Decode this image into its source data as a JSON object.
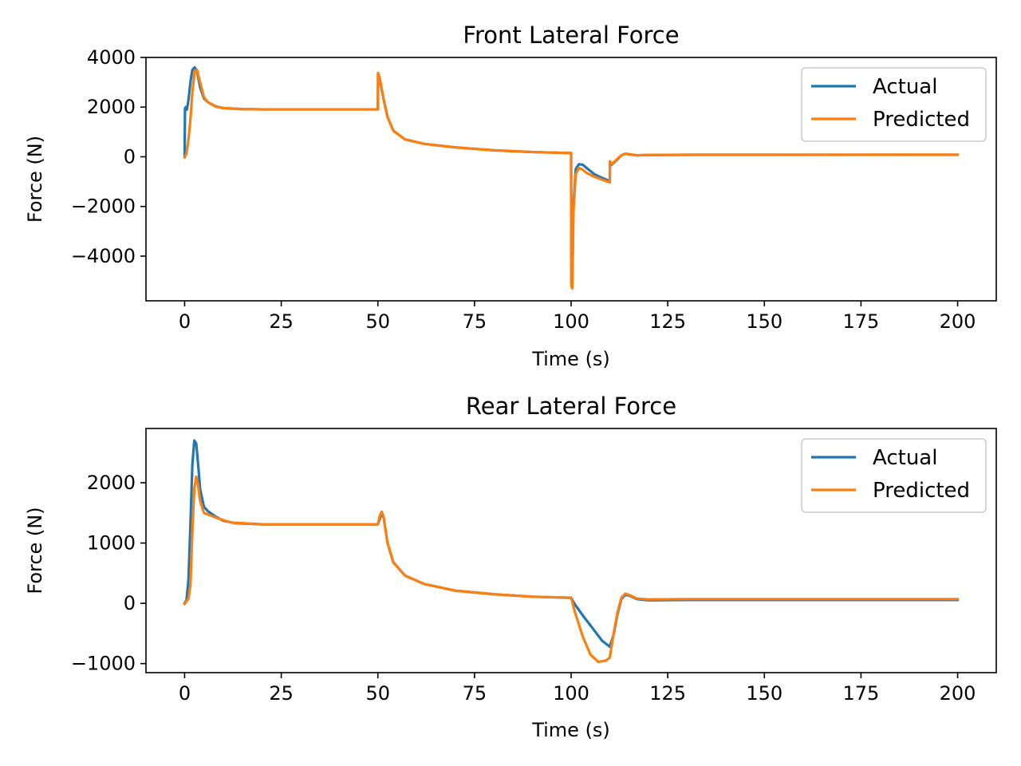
{
  "chart_data": [
    {
      "type": "line",
      "title": "Front Lateral Force",
      "xlabel": "Time (s)",
      "ylabel": "Force (N)",
      "xlim": [
        -10,
        210
      ],
      "ylim": [
        -5800,
        4000
      ],
      "xticks": [
        0,
        25,
        50,
        75,
        100,
        125,
        150,
        175,
        200
      ],
      "xtick_labels": [
        "0",
        "25",
        "50",
        "75",
        "100",
        "125",
        "150",
        "175",
        "200"
      ],
      "yticks": [
        4000,
        2000,
        0,
        -2000,
        -4000
      ],
      "ytick_labels": [
        "4000",
        "2000",
        "0",
        "−2000",
        "−4000"
      ],
      "legend": "upper right",
      "series": [
        {
          "name": "Actual",
          "color": "#1f77b4",
          "points": [
            [
              0,
              0
            ],
            [
              0.1,
              1950
            ],
            [
              0.3,
              2000
            ],
            [
              0.6,
              1900
            ],
            [
              1,
              2300
            ],
            [
              1.5,
              3000
            ],
            [
              2,
              3500
            ],
            [
              2.6,
              3600
            ],
            [
              3.2,
              3450
            ],
            [
              4,
              2800
            ],
            [
              5,
              2350
            ],
            [
              6,
              2200
            ],
            [
              8,
              2030
            ],
            [
              10,
              1960
            ],
            [
              15,
              1920
            ],
            [
              20,
              1910
            ],
            [
              30,
              1910
            ],
            [
              40,
              1910
            ],
            [
              49.9,
              1910
            ],
            [
              50,
              1910
            ],
            [
              50.05,
              3350
            ],
            [
              50.5,
              3100
            ],
            [
              51.5,
              2300
            ],
            [
              52.5,
              1600
            ],
            [
              54,
              1050
            ],
            [
              57,
              700
            ],
            [
              62,
              520
            ],
            [
              70,
              380
            ],
            [
              80,
              260
            ],
            [
              90,
              190
            ],
            [
              99.9,
              150
            ],
            [
              100,
              150
            ],
            [
              100.05,
              -5000
            ],
            [
              100.3,
              -5150
            ],
            [
              100.6,
              -2000
            ],
            [
              101.2,
              -500
            ],
            [
              102,
              -300
            ],
            [
              103,
              -320
            ],
            [
              104,
              -450
            ],
            [
              106,
              -700
            ],
            [
              108,
              -850
            ],
            [
              110,
              -980
            ],
            [
              110.05,
              -200
            ],
            [
              110.5,
              -320
            ],
            [
              112,
              -100
            ],
            [
              113,
              60
            ],
            [
              114,
              120
            ],
            [
              115,
              100
            ],
            [
              117,
              60
            ],
            [
              120,
              70
            ],
            [
              130,
              80
            ],
            [
              150,
              80
            ],
            [
              200,
              80
            ]
          ]
        },
        {
          "name": "Predicted",
          "color": "#ff7f0e",
          "points": [
            [
              0,
              -20
            ],
            [
              0.5,
              150
            ],
            [
              1,
              700
            ],
            [
              1.5,
              1500
            ],
            [
              2,
              2600
            ],
            [
              2.6,
              3450
            ],
            [
              3.2,
              3500
            ],
            [
              4,
              3000
            ],
            [
              5,
              2400
            ],
            [
              6,
              2200
            ],
            [
              8,
              2020
            ],
            [
              10,
              1960
            ],
            [
              15,
              1920
            ],
            [
              20,
              1910
            ],
            [
              30,
              1910
            ],
            [
              40,
              1910
            ],
            [
              49.9,
              1910
            ],
            [
              50,
              1910
            ],
            [
              50.05,
              3380
            ],
            [
              50.5,
              3150
            ],
            [
              51.5,
              2320
            ],
            [
              52.5,
              1600
            ],
            [
              54,
              1050
            ],
            [
              57,
              700
            ],
            [
              62,
              520
            ],
            [
              70,
              380
            ],
            [
              80,
              260
            ],
            [
              90,
              190
            ],
            [
              99.9,
              150
            ],
            [
              100,
              150
            ],
            [
              100.05,
              -5200
            ],
            [
              100.3,
              -5300
            ],
            [
              100.6,
              -2200
            ],
            [
              101.2,
              -700
            ],
            [
              102,
              -450
            ],
            [
              103,
              -520
            ],
            [
              104,
              -650
            ],
            [
              106,
              -800
            ],
            [
              108,
              -920
            ],
            [
              110,
              -1030
            ],
            [
              110.05,
              -180
            ],
            [
              110.5,
              -300
            ],
            [
              112,
              -80
            ],
            [
              113,
              60
            ],
            [
              114,
              120
            ],
            [
              115,
              100
            ],
            [
              117,
              60
            ],
            [
              120,
              75
            ],
            [
              130,
              80
            ],
            [
              150,
              80
            ],
            [
              200,
              85
            ]
          ]
        }
      ]
    },
    {
      "type": "line",
      "title": "Rear Lateral Force",
      "xlabel": "Time (s)",
      "ylabel": "Force (N)",
      "xlim": [
        -10,
        210
      ],
      "ylim": [
        -1150,
        2900
      ],
      "xticks": [
        0,
        25,
        50,
        75,
        100,
        125,
        150,
        175,
        200
      ],
      "xtick_labels": [
        "0",
        "25",
        "50",
        "75",
        "100",
        "125",
        "150",
        "175",
        "200"
      ],
      "yticks": [
        2000,
        1000,
        0,
        -1000
      ],
      "ytick_labels": [
        "2000",
        "1000",
        "0",
        "−1000"
      ],
      "legend": "upper right",
      "series": [
        {
          "name": "Actual",
          "color": "#1f77b4",
          "points": [
            [
              0,
              0
            ],
            [
              0.5,
              60
            ],
            [
              1,
              400
            ],
            [
              1.5,
              1300
            ],
            [
              2,
              2300
            ],
            [
              2.5,
              2700
            ],
            [
              3,
              2650
            ],
            [
              3.5,
              2300
            ],
            [
              4,
              1900
            ],
            [
              5,
              1600
            ],
            [
              6,
              1530
            ],
            [
              8,
              1440
            ],
            [
              10,
              1370
            ],
            [
              13,
              1330
            ],
            [
              20,
              1310
            ],
            [
              30,
              1310
            ],
            [
              40,
              1310
            ],
            [
              50,
              1310
            ],
            [
              50.5,
              1400
            ],
            [
              51,
              1500
            ],
            [
              51.5,
              1420
            ],
            [
              52.5,
              1000
            ],
            [
              54,
              680
            ],
            [
              57,
              460
            ],
            [
              62,
              320
            ],
            [
              70,
              210
            ],
            [
              80,
              150
            ],
            [
              90,
              110
            ],
            [
              100,
              90
            ],
            [
              101,
              -20
            ],
            [
              103,
              -200
            ],
            [
              106,
              -450
            ],
            [
              108,
              -620
            ],
            [
              110,
              -720
            ],
            [
              111,
              -520
            ],
            [
              112,
              -180
            ],
            [
              113,
              70
            ],
            [
              114,
              140
            ],
            [
              115,
              130
            ],
            [
              117,
              70
            ],
            [
              120,
              50
            ],
            [
              130,
              55
            ],
            [
              150,
              55
            ],
            [
              200,
              55
            ]
          ]
        },
        {
          "name": "Predicted",
          "color": "#ff7f0e",
          "points": [
            [
              0,
              -10
            ],
            [
              1,
              80
            ],
            [
              1.5,
              300
            ],
            [
              2,
              1200
            ],
            [
              2.5,
              1900
            ],
            [
              3,
              2100
            ],
            [
              3.5,
              1950
            ],
            [
              4,
              1700
            ],
            [
              5,
              1500
            ],
            [
              7,
              1450
            ],
            [
              9,
              1400
            ],
            [
              12,
              1340
            ],
            [
              20,
              1310
            ],
            [
              30,
              1310
            ],
            [
              40,
              1310
            ],
            [
              50,
              1310
            ],
            [
              50.5,
              1450
            ],
            [
              51,
              1520
            ],
            [
              51.5,
              1430
            ],
            [
              52.5,
              1000
            ],
            [
              54,
              680
            ],
            [
              57,
              460
            ],
            [
              62,
              320
            ],
            [
              70,
              210
            ],
            [
              80,
              150
            ],
            [
              90,
              110
            ],
            [
              100,
              95
            ],
            [
              101,
              -150
            ],
            [
              103,
              -550
            ],
            [
              105,
              -850
            ],
            [
              107,
              -970
            ],
            [
              109,
              -950
            ],
            [
              110,
              -900
            ],
            [
              111,
              -500
            ],
            [
              112,
              -150
            ],
            [
              113,
              90
            ],
            [
              114,
              160
            ],
            [
              115,
              140
            ],
            [
              117,
              80
            ],
            [
              120,
              65
            ],
            [
              130,
              70
            ],
            [
              150,
              70
            ],
            [
              200,
              70
            ]
          ]
        }
      ]
    }
  ]
}
